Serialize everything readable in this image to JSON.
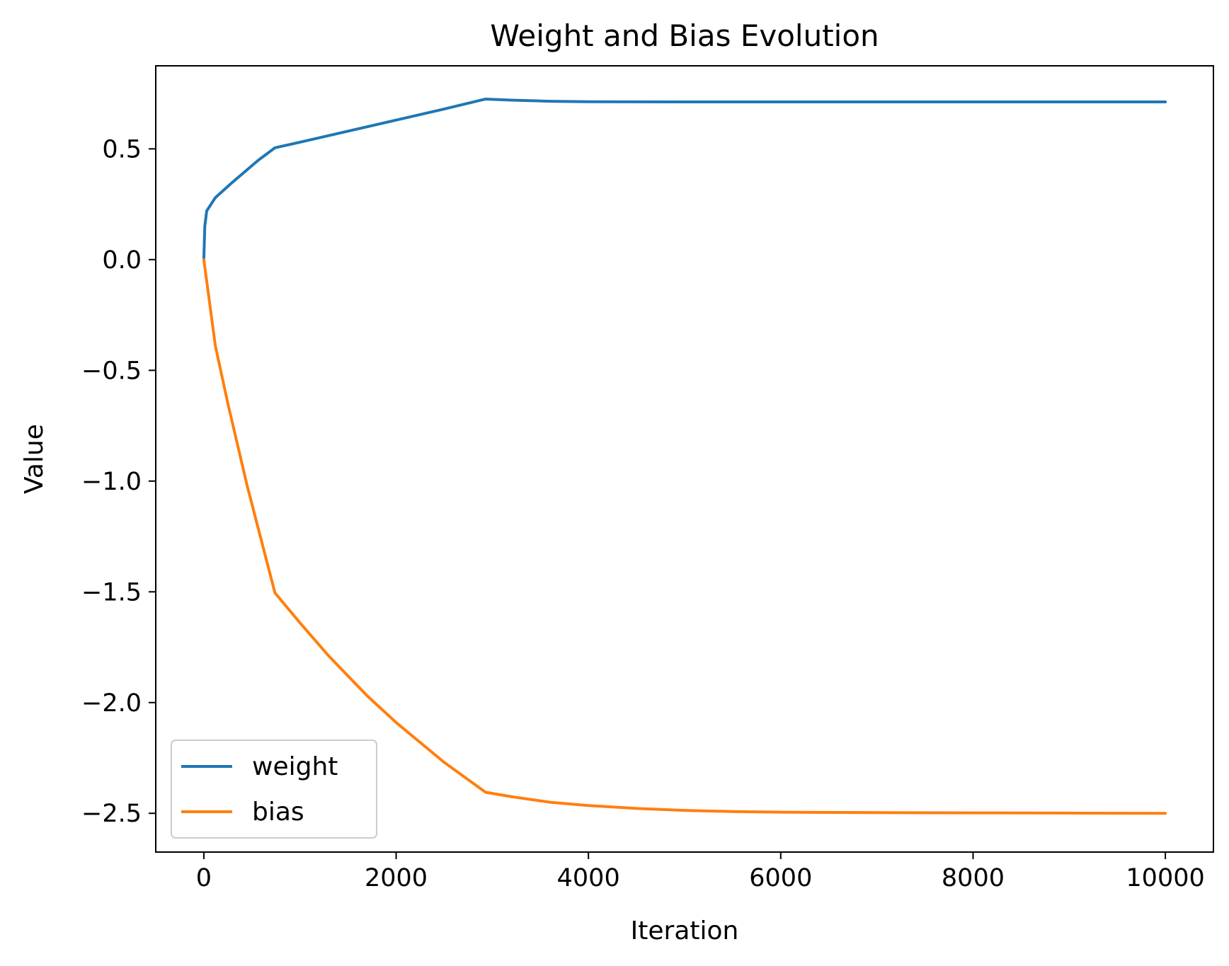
{
  "chart_data": {
    "type": "line",
    "title": "Weight and Bias Evolution",
    "xlabel": "Iteration",
    "ylabel": "Value",
    "xlim": [
      -500,
      10500
    ],
    "ylim": [
      -2.675,
      0.875
    ],
    "xticks": [
      0,
      2000,
      4000,
      6000,
      8000,
      10000
    ],
    "xtick_labels": [
      "0",
      "2000",
      "4000",
      "6000",
      "8000",
      "10000"
    ],
    "yticks": [
      0.5,
      0.0,
      -0.5,
      -1.0,
      -1.5,
      -2.0,
      -2.5
    ],
    "ytick_labels": [
      "0.5",
      "0.0",
      "−0.5",
      "−1.0",
      "−1.5",
      "−2.0",
      "−2.5"
    ],
    "grid": false,
    "legend": {
      "placement": "lower-left",
      "entries": [
        "weight",
        "bias"
      ]
    },
    "series": [
      {
        "name": "weight",
        "color": "#1f77b4",
        "x": [
          0,
          10,
          30,
          60,
          120,
          300,
          570,
          740,
          1000,
          1500,
          2000,
          2500,
          2930,
          3200,
          3600,
          4000,
          5000,
          6000,
          7000,
          8000,
          9000,
          10000
        ],
        "y": [
          0.0,
          0.15,
          0.22,
          0.24,
          0.28,
          0.35,
          0.45,
          0.505,
          0.53,
          0.58,
          0.63,
          0.68,
          0.725,
          0.72,
          0.715,
          0.713,
          0.712,
          0.712,
          0.712,
          0.712,
          0.712,
          0.712
        ]
      },
      {
        "name": "bias",
        "color": "#ff7f0e",
        "x": [
          0,
          120,
          250,
          450,
          740,
          1000,
          1300,
          1700,
          2000,
          2500,
          2930,
          3200,
          3600,
          4000,
          4500,
          5000,
          5500,
          6000,
          7000,
          8000,
          9000,
          10000
        ],
        "y": [
          0.0,
          -0.39,
          -0.65,
          -1.02,
          -1.505,
          -1.64,
          -1.79,
          -1.97,
          -2.09,
          -2.27,
          -2.405,
          -2.425,
          -2.45,
          -2.465,
          -2.478,
          -2.487,
          -2.492,
          -2.495,
          -2.497,
          -2.498,
          -2.499,
          -2.5
        ]
      }
    ]
  }
}
